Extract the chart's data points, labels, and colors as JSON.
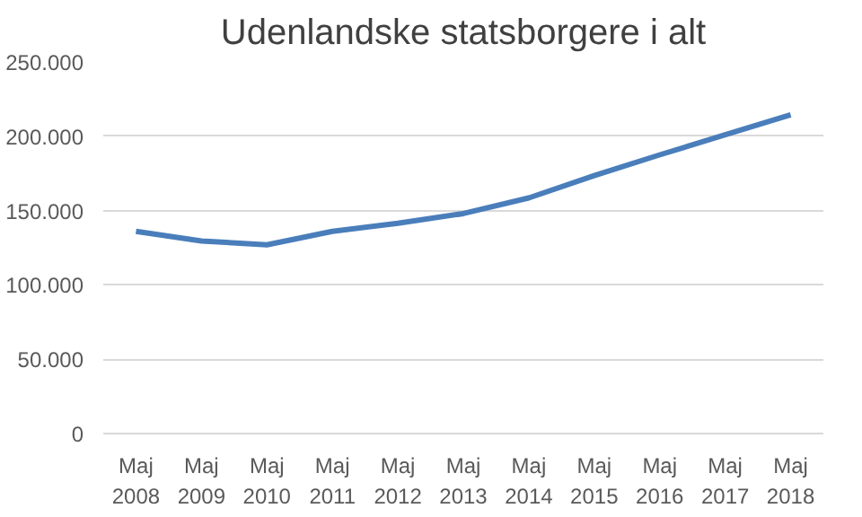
{
  "chart_data": {
    "type": "line",
    "title": "Udenlandske statsborgere i alt",
    "categories": [
      "Maj\n2008",
      "Maj\n2009",
      "Maj\n2010",
      "Maj\n2011",
      "Maj\n2012",
      "Maj\n2013",
      "Maj\n2014",
      "Maj\n2015",
      "Maj\n2016",
      "Maj\n2017",
      "Maj\n2018"
    ],
    "series": [
      {
        "color": "#4a7ebb",
        "values": [
          136000,
          129500,
          127000,
          136000,
          141500,
          148000,
          158500,
          173500,
          187500,
          201000,
          214500
        ]
      }
    ],
    "ylim": [
      0,
      250000
    ],
    "yticks": [
      {
        "value": 0,
        "label": "0"
      },
      {
        "value": 50000,
        "label": "50.000"
      },
      {
        "value": 100000,
        "label": "100.000"
      },
      {
        "value": 150000,
        "label": "150.000"
      },
      {
        "value": 200000,
        "label": "200.000"
      },
      {
        "value": 250000,
        "label": "250.000"
      }
    ],
    "grid": "y",
    "marker": "none",
    "line_style": "solid"
  }
}
